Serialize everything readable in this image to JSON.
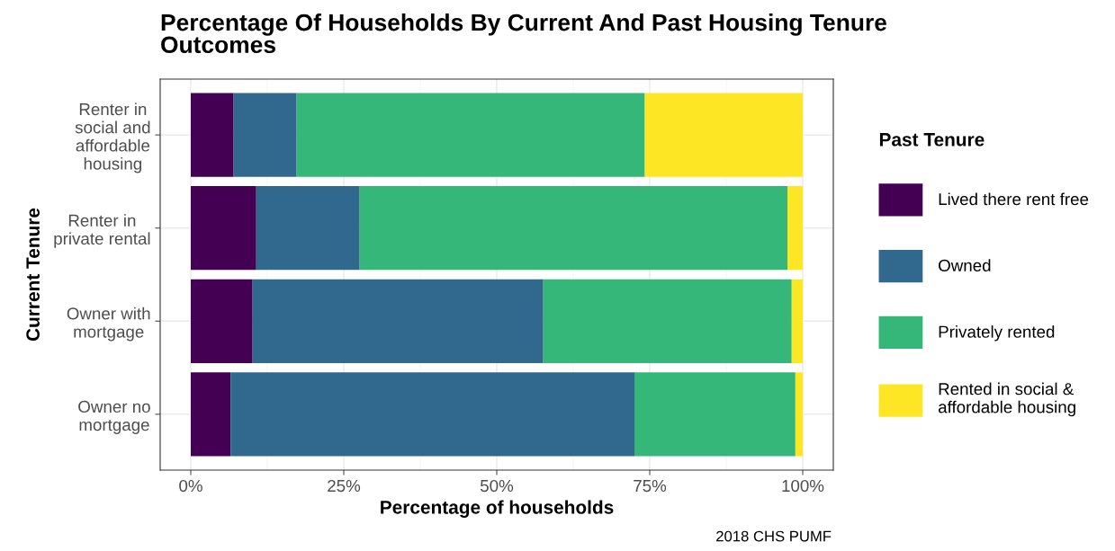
{
  "chart_data": {
    "type": "bar",
    "orientation": "horizontal",
    "stacked": true,
    "title": "Percentage Of Households By Current And Past Housing Tenure\nOutcomes",
    "xlabel": "Percentage of households",
    "ylabel": "Current Tenure",
    "legend_title": "Past Tenure",
    "categories": [
      "Renter in\nsocial and\naffordable\nhousing",
      "Renter in\nprivate rental",
      "Owner with\nmortgage",
      "Owner no\nmortgage"
    ],
    "series": [
      {
        "name": "Lived there rent free",
        "color": "#440154",
        "values": [
          7.0,
          10.7,
          10.1,
          6.5
        ]
      },
      {
        "name": "Owned",
        "color": "#31688e",
        "values": [
          10.3,
          16.9,
          47.5,
          66.0
        ]
      },
      {
        "name": "Privately rented",
        "color": "#35b779",
        "values": [
          56.9,
          69.9,
          40.6,
          26.3
        ]
      },
      {
        "name": "Rented in social &\naffordable housing",
        "color": "#fde725",
        "values": [
          25.8,
          2.5,
          1.8,
          1.2
        ]
      }
    ],
    "xlim": [
      -5,
      105
    ],
    "xticks": [
      {
        "value": 0,
        "label": "0%"
      },
      {
        "value": 25,
        "label": "25%"
      },
      {
        "value": 50,
        "label": "50%"
      },
      {
        "value": 75,
        "label": "75%"
      },
      {
        "value": 100,
        "label": "100%"
      }
    ],
    "grid": true,
    "legend": "right",
    "annotations": [
      "2018 CHS PUMF"
    ]
  }
}
